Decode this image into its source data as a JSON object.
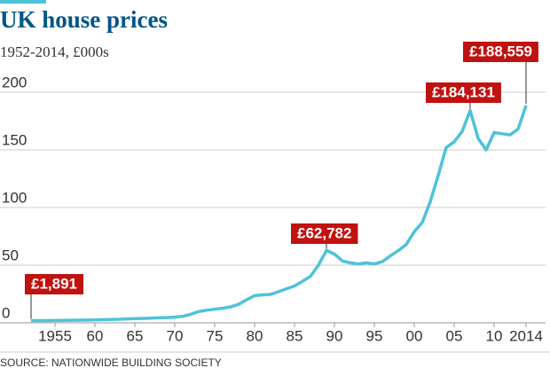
{
  "chart_data": {
    "type": "line",
    "title": "UK house prices",
    "subtitle": "1952-2014, £000s",
    "source": "SOURCE: NATIONWIDE BUILDING SOCIETY",
    "color": "#4dc3da",
    "label_color": "#c0120f",
    "grid": true,
    "x": [
      1952,
      1953,
      1954,
      1955,
      1956,
      1957,
      1958,
      1959,
      1960,
      1961,
      1962,
      1963,
      1964,
      1965,
      1966,
      1967,
      1968,
      1969,
      1970,
      1971,
      1972,
      1973,
      1974,
      1975,
      1976,
      1977,
      1978,
      1979,
      1980,
      1981,
      1982,
      1983,
      1984,
      1985,
      1986,
      1987,
      1988,
      1989,
      1990,
      1991,
      1992,
      1993,
      1994,
      1995,
      1996,
      1997,
      1998,
      1999,
      2000,
      2001,
      2002,
      2003,
      2004,
      2005,
      2006,
      2007,
      2008,
      2009,
      2010,
      2011,
      2012,
      2013,
      2014
    ],
    "values": [
      1.891,
      1.9,
      1.95,
      2.0,
      2.1,
      2.2,
      2.3,
      2.4,
      2.5,
      2.7,
      2.9,
      3.1,
      3.4,
      3.6,
      3.8,
      4.0,
      4.3,
      4.5,
      4.9,
      5.6,
      7.4,
      9.8,
      10.9,
      11.8,
      12.7,
      13.8,
      16.0,
      20.0,
      23.5,
      24.2,
      24.6,
      27.0,
      29.5,
      31.9,
      36.0,
      40.4,
      50.0,
      62.782,
      59.6,
      53.6,
      52.0,
      51.0,
      52.0,
      51.1,
      53.0,
      58.0,
      62.6,
      68.0,
      79.0,
      87.0,
      105.0,
      128.0,
      152.0,
      157.0,
      166.0,
      184.131,
      160.0,
      150.0,
      165.0,
      164.0,
      163.0,
      168.0,
      188.559
    ],
    "value_labels": [
      "£1,891",
      null,
      null,
      null,
      null,
      null,
      null,
      null,
      null,
      null,
      null,
      null,
      null,
      null,
      null,
      null,
      null,
      null,
      null,
      null,
      null,
      null,
      null,
      null,
      null,
      null,
      null,
      null,
      null,
      null,
      null,
      null,
      null,
      null,
      null,
      null,
      null,
      "£62,782",
      null,
      null,
      null,
      null,
      null,
      null,
      null,
      null,
      null,
      null,
      null,
      null,
      null,
      null,
      null,
      null,
      null,
      "£184,131",
      null,
      null,
      null,
      null,
      null,
      null,
      "£188,559"
    ],
    "xlim": [
      1949,
      2016
    ],
    "ylim": [
      0,
      200
    ],
    "yticks": [
      0,
      50,
      100,
      150,
      200
    ],
    "xticks": [
      1955,
      {
        "value": 1960,
        "label": "60"
      },
      {
        "value": 1965,
        "label": "65"
      },
      {
        "value": 1970,
        "label": "70"
      },
      {
        "value": 1975,
        "label": "75"
      },
      {
        "value": 1980,
        "label": "80"
      },
      {
        "value": 1985,
        "label": "85"
      },
      {
        "value": 1990,
        "label": "90"
      },
      {
        "value": 1995,
        "label": "95"
      },
      {
        "value": 2000,
        "label": "00"
      },
      {
        "value": 2005,
        "label": "05"
      },
      {
        "value": 2010,
        "label": "10"
      },
      2014
    ]
  }
}
